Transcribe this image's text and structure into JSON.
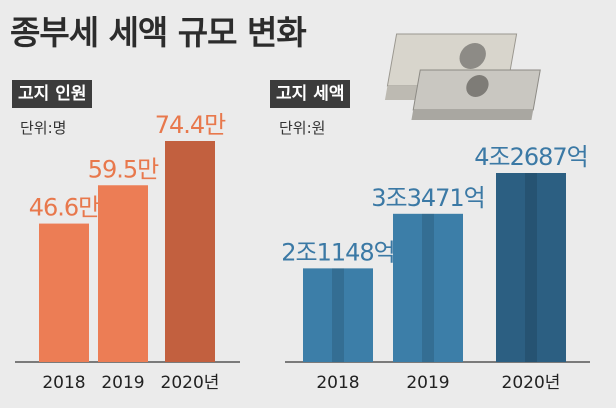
{
  "title": "종부세 세액 규모 변화",
  "panels": [
    {
      "label": "고지 인원",
      "unit": "단위:명"
    },
    {
      "label": "고지 세액",
      "unit": "단위:원"
    }
  ],
  "chart_data": [
    {
      "type": "bar",
      "title": "고지 인원",
      "unit": "단위:명",
      "categories": [
        "2018",
        "2019",
        "2020년"
      ],
      "values": [
        466000,
        595000,
        744000
      ],
      "labels": [
        "46.6만",
        "59.5만",
        "74.4만"
      ],
      "colors": [
        "#ec7d55",
        "#ec7d55",
        "#c2603f"
      ]
    },
    {
      "type": "bar",
      "title": "고지 세액",
      "unit": "단위:원",
      "categories": [
        "2018",
        "2019",
        "2020년"
      ],
      "values": [
        2114800000000,
        3347100000000,
        4268700000000
      ],
      "labels": [
        "2조1148억",
        "3조3471억",
        "4조2687억"
      ],
      "colors": [
        "#3c7ea8",
        "#3c7ea8",
        "#2c5f82"
      ]
    }
  ],
  "colors": {
    "label_orange": "#e8784c",
    "label_blue": "#3b79a5",
    "panel_label_bg": "#3c3c3c",
    "background": "#ebebeb"
  },
  "icons": {
    "money": "banknote-stack-icon"
  }
}
